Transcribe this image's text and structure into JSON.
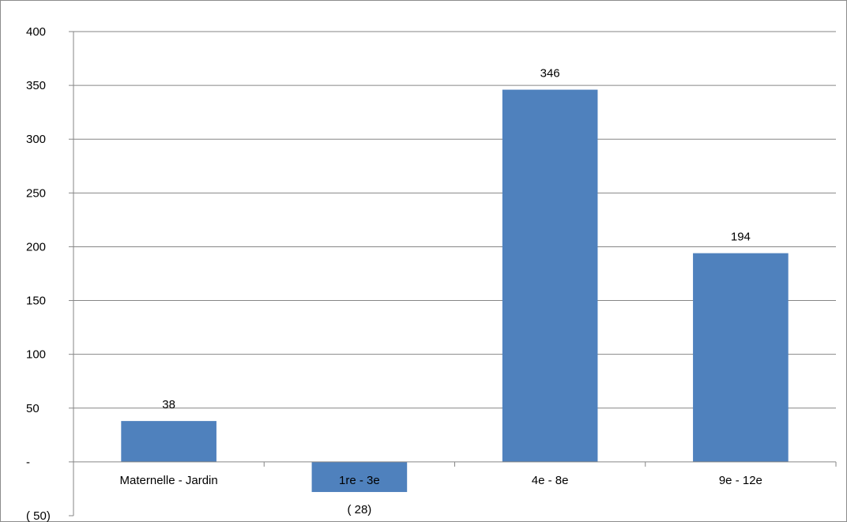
{
  "chart_data": {
    "type": "bar",
    "title": "",
    "xlabel": "",
    "ylabel": "",
    "categories": [
      "Maternelle - Jardin",
      "1re - 3e",
      "4e - 8e",
      "9e - 12e"
    ],
    "values": [
      38,
      -28,
      346,
      194
    ],
    "data_labels": [
      "38",
      "( 28)",
      "346",
      "194"
    ],
    "ylim": [
      -50,
      400
    ],
    "y_ticks": [
      400,
      350,
      300,
      250,
      200,
      150,
      100,
      50,
      0,
      -50
    ],
    "y_tick_labels": [
      "400",
      "350",
      "300",
      "250",
      "200",
      "150",
      "100",
      "50",
      "-",
      "( 50)"
    ],
    "grid": true,
    "legend": "none",
    "bar_color": "#4f81bd"
  }
}
